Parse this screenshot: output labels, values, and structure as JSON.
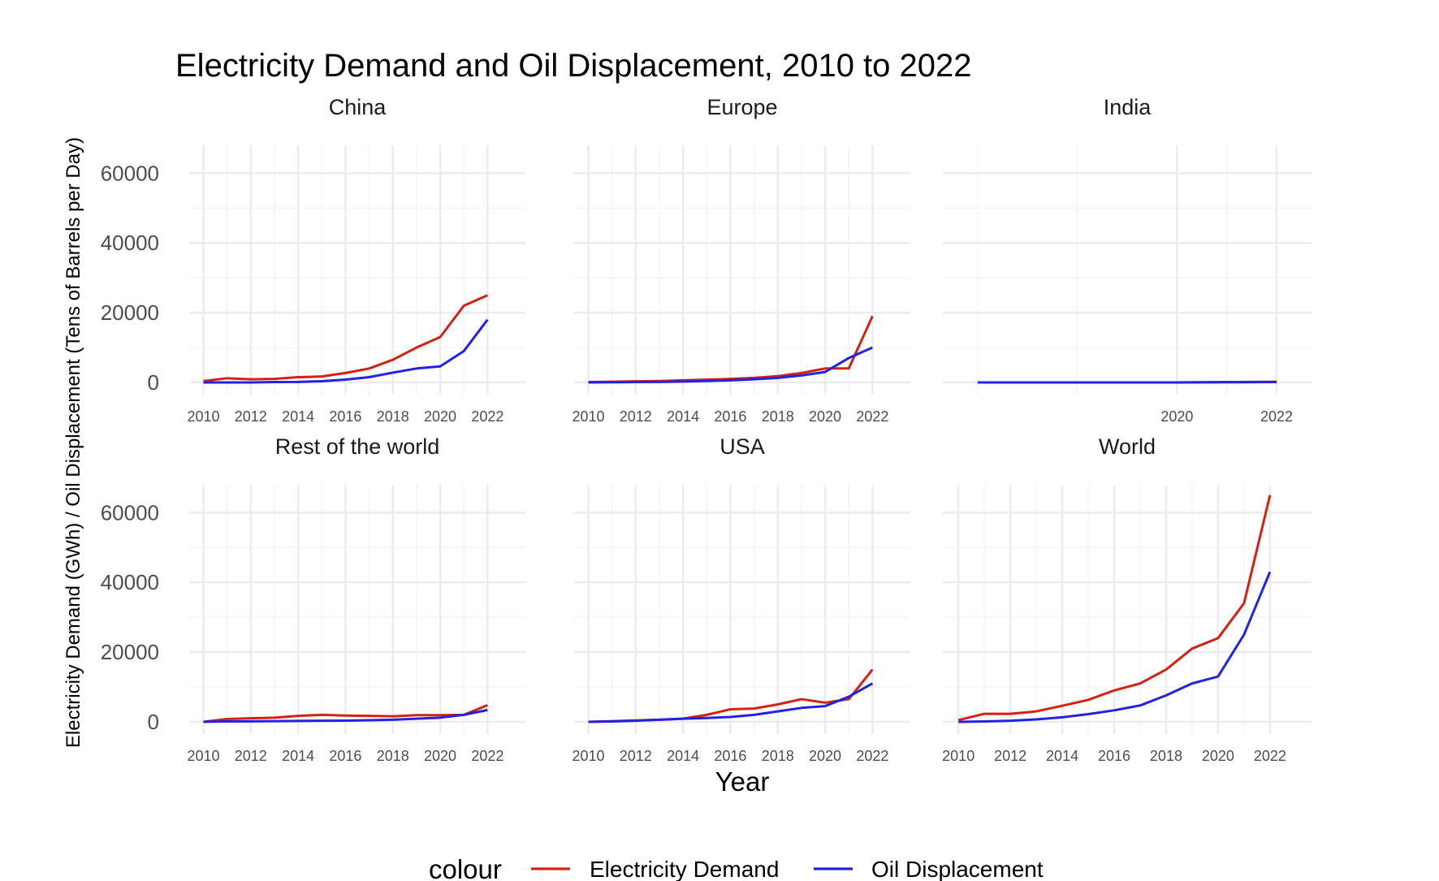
{
  "chart_data": {
    "type": "line",
    "title": "Electricity Demand and Oil Displacement, 2010 to 2022",
    "xlabel": "Year",
    "ylabel": "Electricity Demand (GWh) / Oil Displacement (Tens of Barrels per Day)",
    "ylim": [
      -3500,
      68000
    ],
    "yticks": [
      0,
      20000,
      40000,
      60000
    ],
    "grid": true,
    "legend": {
      "title": "colour",
      "position": "bottom",
      "entries": [
        {
          "label": "Electricity Demand",
          "color": "#d62012"
        },
        {
          "label": "Oil Displacement",
          "color": "#2222e6"
        }
      ]
    },
    "panels": [
      {
        "name": "China",
        "xlim": [
          2009.4,
          2023.6
        ],
        "xticks": [
          2010,
          2012,
          2014,
          2016,
          2018,
          2020,
          2022
        ],
        "minor_xticks": [
          2011,
          2013,
          2015,
          2017,
          2019,
          2021
        ],
        "series": [
          {
            "name": "Electricity Demand",
            "color": "#d62012",
            "x": [
              2010,
              2011,
              2012,
              2013,
              2014,
              2015,
              2016,
              2017,
              2018,
              2019,
              2020,
              2021,
              2022
            ],
            "y": [
              400,
              1200,
              900,
              1000,
              1500,
              1700,
              2700,
              4000,
              6500,
              10000,
              13000,
              22000,
              25000
            ]
          },
          {
            "name": "Oil Displacement",
            "color": "#2222e6",
            "x": [
              2010,
              2011,
              2012,
              2013,
              2014,
              2015,
              2016,
              2017,
              2018,
              2019,
              2020,
              2021,
              2022
            ],
            "y": [
              0,
              0,
              0,
              100,
              150,
              350,
              800,
              1500,
              2800,
              4000,
              4600,
              9000,
              18000
            ]
          }
        ]
      },
      {
        "name": "Europe",
        "xlim": [
          2009.4,
          2023.6
        ],
        "xticks": [
          2010,
          2012,
          2014,
          2016,
          2018,
          2020,
          2022
        ],
        "minor_xticks": [
          2011,
          2013,
          2015,
          2017,
          2019,
          2021
        ],
        "series": [
          {
            "name": "Electricity Demand",
            "color": "#d62012",
            "x": [
              2010,
              2011,
              2012,
              2013,
              2014,
              2015,
              2016,
              2017,
              2018,
              2019,
              2020,
              2021,
              2022
            ],
            "y": [
              100,
              200,
              300,
              400,
              600,
              800,
              1000,
              1300,
              1800,
              2700,
              4000,
              4000,
              19000
            ]
          },
          {
            "name": "Oil Displacement",
            "color": "#2222e6",
            "x": [
              2010,
              2011,
              2012,
              2013,
              2014,
              2015,
              2016,
              2017,
              2018,
              2019,
              2020,
              2021,
              2022
            ],
            "y": [
              0,
              50,
              100,
              150,
              250,
              400,
              600,
              900,
              1300,
              2000,
              3000,
              7000,
              10000
            ]
          }
        ]
      },
      {
        "name": "India",
        "xlim": [
          2015.3,
          2022.7
        ],
        "xticks": [
          2020,
          2022
        ],
        "minor_xticks": [
          2016,
          2018,
          2021
        ],
        "series": [
          {
            "name": "Electricity Demand",
            "color": "#d62012",
            "x": [
              2016,
              2017,
              2018,
              2019,
              2020,
              2021,
              2022
            ],
            "y": [
              0,
              0,
              0,
              0,
              0,
              100,
              200
            ]
          },
          {
            "name": "Oil Displacement",
            "color": "#2222e6",
            "x": [
              2016,
              2017,
              2018,
              2019,
              2020,
              2021,
              2022
            ],
            "y": [
              0,
              0,
              0,
              0,
              0,
              50,
              100
            ]
          }
        ]
      },
      {
        "name": "Rest of the world",
        "xlim": [
          2009.4,
          2023.6
        ],
        "xticks": [
          2010,
          2012,
          2014,
          2016,
          2018,
          2020,
          2022
        ],
        "minor_xticks": [
          2011,
          2013,
          2015,
          2017,
          2019,
          2021
        ],
        "series": [
          {
            "name": "Electricity Demand",
            "color": "#d62012",
            "x": [
              2010,
              2011,
              2012,
              2013,
              2014,
              2015,
              2016,
              2017,
              2018,
              2019,
              2020,
              2021,
              2022
            ],
            "y": [
              0,
              800,
              1000,
              1200,
              1700,
              2000,
              1800,
              1700,
              1600,
              1900,
              1900,
              2000,
              4800
            ]
          },
          {
            "name": "Oil Displacement",
            "color": "#2222e6",
            "x": [
              2010,
              2011,
              2012,
              2013,
              2014,
              2015,
              2016,
              2017,
              2018,
              2019,
              2020,
              2021,
              2022
            ],
            "y": [
              0,
              100,
              150,
              200,
              250,
              300,
              350,
              450,
              600,
              900,
              1200,
              2000,
              3400
            ]
          }
        ]
      },
      {
        "name": "USA",
        "xlim": [
          2009.4,
          2023.6
        ],
        "xticks": [
          2010,
          2012,
          2014,
          2016,
          2018,
          2020,
          2022
        ],
        "minor_xticks": [
          2011,
          2013,
          2015,
          2017,
          2019,
          2021
        ],
        "series": [
          {
            "name": "Electricity Demand",
            "color": "#d62012",
            "x": [
              2010,
              2011,
              2012,
              2013,
              2014,
              2015,
              2016,
              2017,
              2018,
              2019,
              2020,
              2021,
              2022
            ],
            "y": [
              0,
              200,
              400,
              600,
              900,
              2000,
              3600,
              3800,
              5000,
              6500,
              5500,
              6500,
              15000
            ]
          },
          {
            "name": "Oil Displacement",
            "color": "#2222e6",
            "x": [
              2010,
              2011,
              2012,
              2013,
              2014,
              2015,
              2016,
              2017,
              2018,
              2019,
              2020,
              2021,
              2022
            ],
            "y": [
              0,
              100,
              300,
              600,
              900,
              1100,
              1400,
              2000,
              3000,
              4000,
              4500,
              7200,
              11000
            ]
          }
        ]
      },
      {
        "name": "World",
        "xlim": [
          2009.4,
          2023.6
        ],
        "xticks": [
          2010,
          2012,
          2014,
          2016,
          2018,
          2020,
          2022
        ],
        "minor_xticks": [
          2011,
          2013,
          2015,
          2017,
          2019,
          2021
        ],
        "series": [
          {
            "name": "Electricity Demand",
            "color": "#d62012",
            "x": [
              2010,
              2011,
              2012,
              2013,
              2014,
              2015,
              2016,
              2017,
              2018,
              2019,
              2020,
              2021,
              2022
            ],
            "y": [
              500,
              2300,
              2300,
              3000,
              4600,
              6300,
              9000,
              11000,
              15000,
              21000,
              24000,
              34000,
              65000
            ]
          },
          {
            "name": "Oil Displacement",
            "color": "#2222e6",
            "x": [
              2010,
              2011,
              2012,
              2013,
              2014,
              2015,
              2016,
              2017,
              2018,
              2019,
              2020,
              2021,
              2022
            ],
            "y": [
              0,
              100,
              300,
              700,
              1300,
              2200,
              3300,
              4700,
              7600,
              11000,
              13000,
              25000,
              43000
            ]
          }
        ]
      }
    ]
  }
}
